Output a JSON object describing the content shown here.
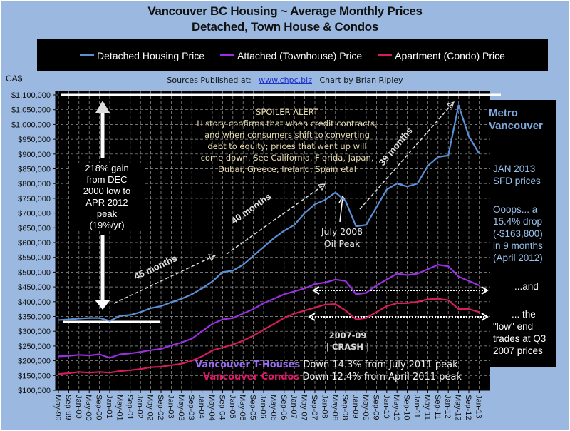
{
  "title": {
    "line1": "Vancouver BC Housing ~ Average Monthly Prices",
    "line2": "Detached,  Town House & Condos"
  },
  "legend": [
    {
      "label": "Detached Housing Price",
      "color": "#5b8fd6"
    },
    {
      "label": "Attached (Townhouse) Price",
      "color": "#9b2fe3"
    },
    {
      "label": "Apartment (Condo) Price",
      "color": "#d81b60"
    }
  ],
  "currency_label": "CA$",
  "sources": {
    "prefix": "Sources Published  at:",
    "link": "www.chpc.biz",
    "suffix": "Chart by Brian Ripley"
  },
  "annotations": {
    "spoiler_title": "SPOILER ALERT",
    "spoiler_lines": [
      "History confirms that when credit contracts,",
      "and when consumers shift to converting",
      "debt to equity; prices that went up will",
      "come down. See California, Florida, Japan,",
      "Dubai, Greece, Ireland, Spain etal"
    ],
    "gain_lines": [
      "218% gain",
      "from DEC",
      "2000 low to",
      "APR 2012",
      "peak",
      "(19%/yr)"
    ],
    "months_45": "45 months",
    "months_40": "40 months",
    "months_39": "39 months",
    "oil_peak_lines": [
      "July 2008",
      "Oil Peak"
    ],
    "crash_lines": [
      "2007-09",
      "| CRASH |"
    ],
    "metro_lines": [
      "Metro",
      "Vancouver"
    ],
    "jan2013_lines": [
      "JAN 2013",
      "SFD prices"
    ],
    "ooops_lines": [
      "Ooops... a",
      "15.4% drop",
      "(-$163,800)",
      "in 9 months",
      "(April 2012)"
    ],
    "and_label": "...and",
    "low_end_lines": [
      "... the",
      "\"low\" end",
      "trades at Q3",
      "2007 prices"
    ],
    "thouses_name": "Vancouver T-Houses",
    "thouses_text": "Down 14.3% from July 2011 peak",
    "condos_name": "Vancouver Condos",
    "condos_text": "Down 12.4% from April  2011 peak"
  },
  "chart_data": {
    "type": "line",
    "title": "Vancouver BC Housing ~ Average Monthly Prices - Detached, Town House & Condos",
    "xlabel": "",
    "ylabel": "CA$",
    "ylim": [
      100000,
      1100000
    ],
    "grid": true,
    "legend_position": "top",
    "y_ticks": [
      "$100,000",
      "$150,000",
      "$200,000",
      "$250,000",
      "$300,000",
      "$350,000",
      "$400,000",
      "$450,000",
      "$500,000",
      "$550,000",
      "$600,000",
      "$650,000",
      "$700,000",
      "$750,000",
      "$800,000",
      "$850,000",
      "$900,000",
      "$950,000",
      "$1,000,000",
      "$1,050,000",
      "$1,100,000"
    ],
    "categories": [
      "May-99",
      "Sep-99",
      "Jan-00",
      "May-00",
      "Sep-00",
      "Jan-01",
      "May-01",
      "Sep-01",
      "Jan-02",
      "May-02",
      "Sep-02",
      "Jan-03",
      "May-03",
      "Sep-03",
      "Jan-04",
      "May-04",
      "Sep-04",
      "Jan-05",
      "May-05",
      "Sep-05",
      "Jan-06",
      "May-06",
      "Sep-06",
      "Jan-07",
      "May-07",
      "Sep-07",
      "Jan-08",
      "May-08",
      "Sep-08",
      "Jan-09",
      "May-09",
      "Sep-09",
      "Jan-10",
      "May-10",
      "Sep-10",
      "Jan-11",
      "May-11",
      "Sep-11",
      "Jan-12",
      "May-12",
      "Sep-12",
      "Jan-13"
    ],
    "series": [
      {
        "name": "Detached Housing Price",
        "color": "#5b8fd6",
        "values": [
          338000,
          340000,
          343000,
          345000,
          345000,
          335000,
          352000,
          355000,
          365000,
          378000,
          385000,
          398000,
          410000,
          425000,
          445000,
          468000,
          500000,
          505000,
          525000,
          555000,
          585000,
          615000,
          640000,
          660000,
          700000,
          730000,
          745000,
          770000,
          740000,
          655000,
          660000,
          720000,
          780000,
          800000,
          790000,
          800000,
          860000,
          890000,
          895000,
          1065000,
          960000,
          902000
        ]
      },
      {
        "name": "Attached (Townhouse) Price",
        "color": "#9b2fe3",
        "values": [
          215000,
          217000,
          220000,
          218000,
          222000,
          210000,
          222000,
          225000,
          230000,
          236000,
          240000,
          252000,
          262000,
          275000,
          300000,
          325000,
          340000,
          345000,
          360000,
          375000,
          395000,
          410000,
          425000,
          435000,
          445000,
          460000,
          465000,
          475000,
          470000,
          425000,
          430000,
          455000,
          475000,
          495000,
          490000,
          495000,
          510000,
          525000,
          520000,
          485000,
          470000,
          455000
        ]
      },
      {
        "name": "Apartment (Condo) Price",
        "color": "#d81b60",
        "values": [
          155000,
          158000,
          162000,
          160000,
          162000,
          160000,
          165000,
          168000,
          172000,
          178000,
          180000,
          185000,
          190000,
          200000,
          215000,
          235000,
          245000,
          255000,
          268000,
          285000,
          305000,
          325000,
          345000,
          360000,
          370000,
          380000,
          390000,
          392000,
          370000,
          340000,
          345000,
          365000,
          385000,
          395000,
          395000,
          400000,
          408000,
          410000,
          405000,
          375000,
          375000,
          365000
        ]
      }
    ],
    "annotations": [
      "45 months",
      "40 months",
      "39 months",
      "July 2008 Oil Peak",
      "2007-09 | CRASH |",
      "218% gain from DEC 2000 low to APR 2012 peak (19%/yr)"
    ]
  }
}
